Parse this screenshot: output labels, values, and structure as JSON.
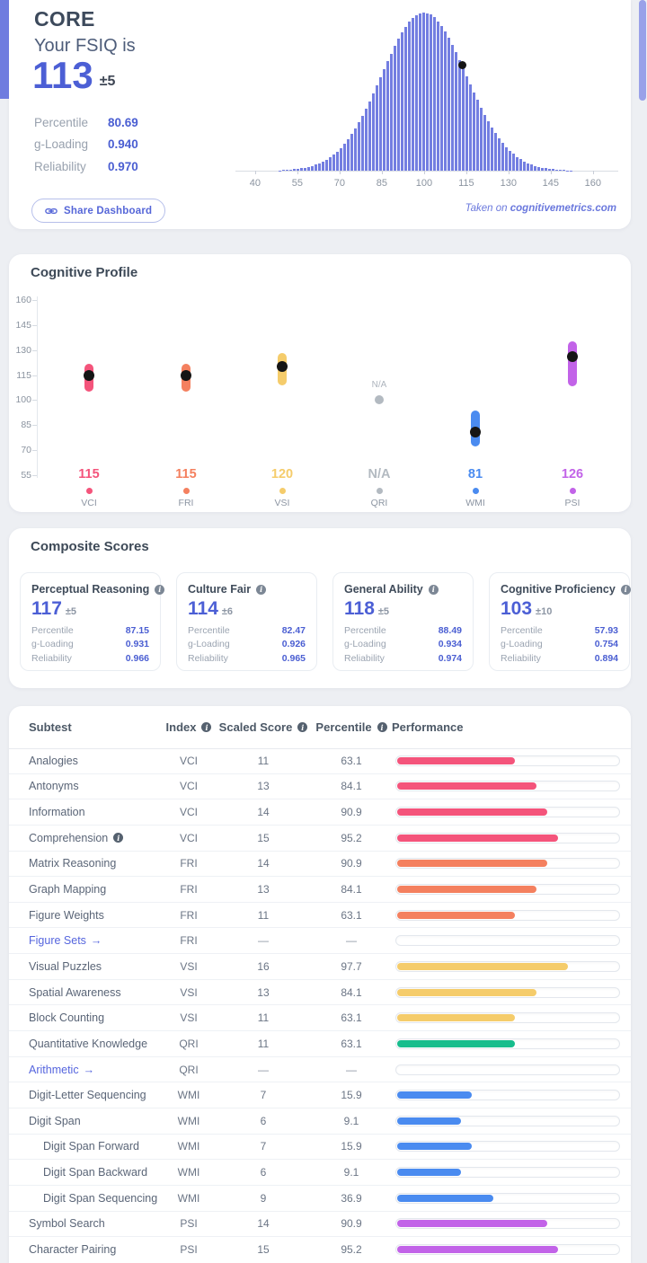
{
  "page": {
    "background": "#edeff3",
    "accent": "#4c5fd5",
    "taken_prefix": "Taken on ",
    "site": "cognitivemetrics.com"
  },
  "fsiq": {
    "title": "CORE",
    "subtitle": "Your FSIQ is",
    "score": "113",
    "ci": "±5",
    "share_button": "Share Dashboard",
    "stats": [
      {
        "label": "Percentile",
        "value": "80.69"
      },
      {
        "label": "g-Loading",
        "value": "0.940"
      },
      {
        "label": "Reliability",
        "value": "0.970"
      }
    ]
  },
  "profile": {
    "title": "Cognitive Profile"
  },
  "composite": {
    "title": "Composite Scores",
    "cards": [
      {
        "name": "Perceptual Reasoning",
        "score": "117",
        "ci": "±5",
        "stats": [
          [
            "Percentile",
            "87.15"
          ],
          [
            "g-Loading",
            "0.931"
          ],
          [
            "Reliability",
            "0.966"
          ]
        ]
      },
      {
        "name": "Culture Fair",
        "score": "114",
        "ci": "±6",
        "stats": [
          [
            "Percentile",
            "82.47"
          ],
          [
            "g-Loading",
            "0.926"
          ],
          [
            "Reliability",
            "0.965"
          ]
        ]
      },
      {
        "name": "General Ability",
        "score": "118",
        "ci": "±5",
        "stats": [
          [
            "Percentile",
            "88.49"
          ],
          [
            "g-Loading",
            "0.934"
          ],
          [
            "Reliability",
            "0.974"
          ]
        ]
      },
      {
        "name": "Cognitive Proficiency",
        "score": "103",
        "ci": "±10",
        "stats": [
          [
            "Percentile",
            "57.93"
          ],
          [
            "g-Loading",
            "0.754"
          ],
          [
            "Reliability",
            "0.894"
          ]
        ]
      }
    ]
  },
  "index_colors": {
    "VCI": "#f4547b",
    "FRI": "#f4805f",
    "VSI": "#f5cc6b",
    "QRI": "#17bd8d",
    "WMI": "#4a8bf0",
    "PSI": "#c263e8"
  },
  "subtests": {
    "headers": {
      "subtest": "Subtest",
      "index": "Index",
      "scaled": "Scaled Score",
      "percentile": "Percentile",
      "performance": "Performance"
    },
    "empty_cell": "—",
    "rows": [
      {
        "name": "Analogies",
        "index": "VCI",
        "scaled": "11",
        "percentile": "63.1"
      },
      {
        "name": "Antonyms",
        "index": "VCI",
        "scaled": "13",
        "percentile": "84.1"
      },
      {
        "name": "Information",
        "index": "VCI",
        "scaled": "14",
        "percentile": "90.9"
      },
      {
        "name": "Comprehension",
        "index": "VCI",
        "scaled": "15",
        "percentile": "95.2",
        "info": true
      },
      {
        "name": "Matrix Reasoning",
        "index": "FRI",
        "scaled": "14",
        "percentile": "90.9"
      },
      {
        "name": "Graph Mapping",
        "index": "FRI",
        "scaled": "13",
        "percentile": "84.1"
      },
      {
        "name": "Figure Weights",
        "index": "FRI",
        "scaled": "11",
        "percentile": "63.1"
      },
      {
        "name": "Figure Sets",
        "index": "FRI",
        "scaled": null,
        "percentile": null,
        "link": true
      },
      {
        "name": "Visual Puzzles",
        "index": "VSI",
        "scaled": "16",
        "percentile": "97.7"
      },
      {
        "name": "Spatial Awareness",
        "index": "VSI",
        "scaled": "13",
        "percentile": "84.1"
      },
      {
        "name": "Block Counting",
        "index": "VSI",
        "scaled": "11",
        "percentile": "63.1"
      },
      {
        "name": "Quantitative Knowledge",
        "index": "QRI",
        "scaled": "11",
        "percentile": "63.1"
      },
      {
        "name": "Arithmetic",
        "index": "QRI",
        "scaled": null,
        "percentile": null,
        "link": true
      },
      {
        "name": "Digit-Letter Sequencing",
        "index": "WMI",
        "scaled": "7",
        "percentile": "15.9"
      },
      {
        "name": "Digit Span",
        "index": "WMI",
        "scaled": "6",
        "percentile": "9.1"
      },
      {
        "name": "Digit Span Forward",
        "index": "WMI",
        "scaled": "7",
        "percentile": "15.9",
        "indent": true
      },
      {
        "name": "Digit Span Backward",
        "index": "WMI",
        "scaled": "6",
        "percentile": "9.1",
        "indent": true
      },
      {
        "name": "Digit Span Sequencing",
        "index": "WMI",
        "scaled": "9",
        "percentile": "36.9",
        "indent": true
      },
      {
        "name": "Symbol Search",
        "index": "PSI",
        "scaled": "14",
        "percentile": "90.9"
      },
      {
        "name": "Character Pairing",
        "index": "PSI",
        "scaled": "15",
        "percentile": "95.2"
      }
    ]
  },
  "chart_data": [
    {
      "id": "fsiq-distribution",
      "type": "area",
      "title": "FSIQ normal distribution (IQ scale, mean 100, sd 15) drawn as thin vertical bars",
      "distribution": {
        "mean": 100,
        "sd": 15
      },
      "xlim": [
        33,
        169
      ],
      "x_ticks": [
        40,
        55,
        70,
        85,
        100,
        115,
        130,
        145,
        160
      ],
      "marker_value": 113,
      "bar_color": "#737ee1",
      "grid": false,
      "legend": "none"
    },
    {
      "id": "cognitive-profile",
      "type": "scatter",
      "title": "Cognitive Profile index scores with confidence ranges",
      "ylim": [
        55,
        160
      ],
      "y_ticks": [
        160,
        145,
        130,
        115,
        100,
        85,
        70,
        55
      ],
      "points": [
        {
          "label": "VCI",
          "display": "115",
          "value": 115,
          "lo": 105,
          "hi": 122,
          "color": "#f4547b"
        },
        {
          "label": "FRI",
          "display": "115",
          "value": 115,
          "lo": 105,
          "hi": 122,
          "color": "#f4805f"
        },
        {
          "label": "VSI",
          "display": "120",
          "value": 120,
          "lo": 109,
          "hi": 128,
          "color": "#f5cc6b"
        },
        {
          "label": "QRI",
          "display": "N/A",
          "value": null,
          "na_marker_y": 100,
          "color": "#b3bac1"
        },
        {
          "label": "WMI",
          "display": "81",
          "value": 81,
          "lo": 72,
          "hi": 94,
          "color": "#4a8bf0"
        },
        {
          "label": "PSI",
          "display": "126",
          "value": 126,
          "lo": 108,
          "hi": 135,
          "color": "#c263e8"
        }
      ],
      "grid": false,
      "legend": "bottom"
    }
  ]
}
